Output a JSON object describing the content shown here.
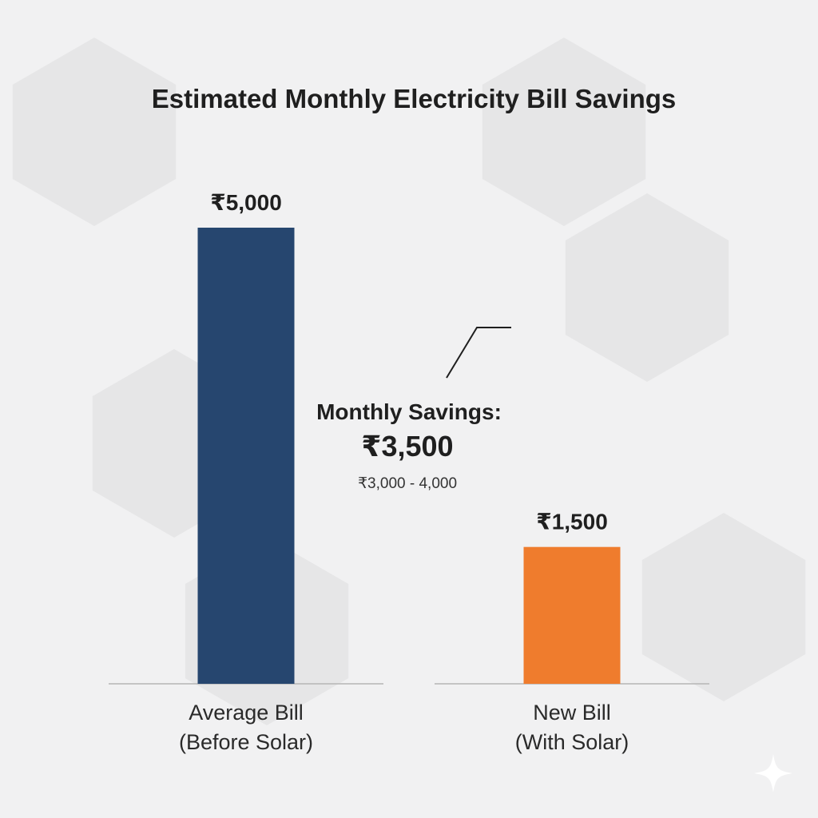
{
  "chart_data": {
    "type": "bar",
    "title": "Estimated Monthly Electricity Bill Savings",
    "xlabel": "",
    "ylabel": "",
    "ylim": [
      0,
      5500
    ],
    "grid": false,
    "legend": "none",
    "categories": [
      [
        "Average Bill",
        "(Before Solar)"
      ],
      [
        "New Bill",
        "(With Solar)"
      ]
    ],
    "values": [
      5000,
      1500
    ],
    "value_labels": [
      "₹5,000",
      "₹1,500"
    ],
    "colors": [
      "#26466f",
      "#ef7c2d"
    ],
    "annotation": {
      "heading": "Monthly Savings:",
      "value": "₹3,500",
      "range": "₹3,000 - 4,000"
    }
  },
  "colors": {
    "background": "#f1f1f2",
    "hexagon": "#e6e6e7",
    "baseline": "#b5b5b5",
    "text": "#1f1f1f"
  },
  "decor": {
    "corner_icon": "sparkle-icon"
  }
}
